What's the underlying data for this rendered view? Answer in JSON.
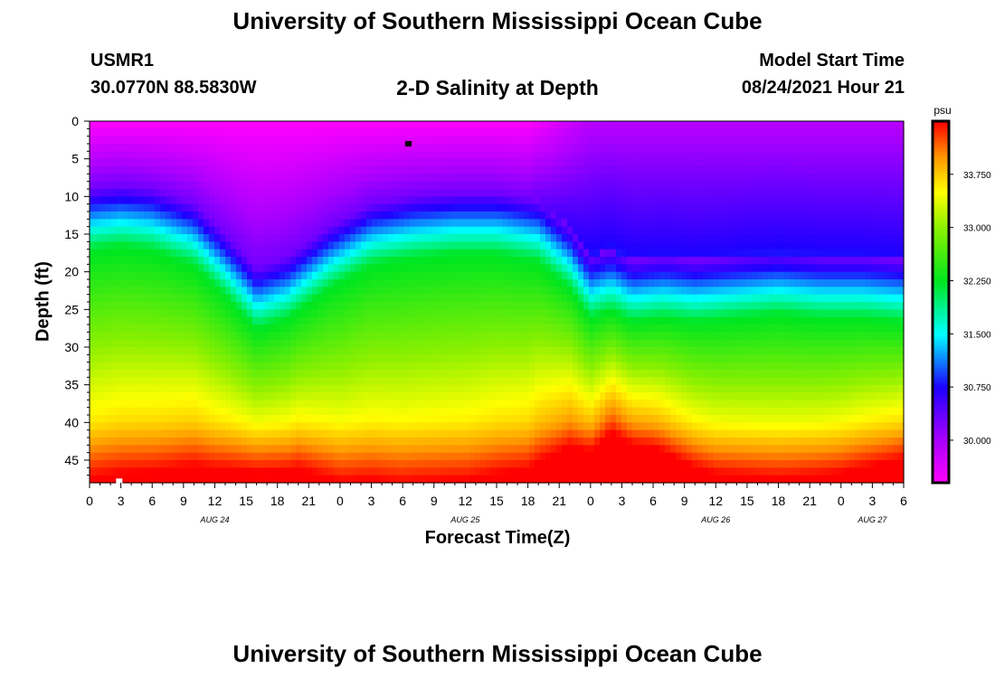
{
  "header": {
    "title_top": "University of Southern Mississippi Ocean Cube",
    "title_bottom": "University of Southern Mississippi Ocean Cube",
    "station": "USMR1",
    "coords": "30.0770N  88.5830W",
    "plot_title": "2-D Salinity at Depth",
    "model_start_label": "Model Start Time",
    "model_start_value": "08/24/2021 Hour 21"
  },
  "chart_data": {
    "type": "heatmap",
    "title": "2-D Salinity at Depth",
    "xlabel": "Forecast Time(Z)",
    "ylabel": "Depth (ft)",
    "x_range_hours": [
      0,
      78
    ],
    "y_range_ft": [
      0,
      48
    ],
    "x_ticks": [
      "0",
      "3",
      "6",
      "9",
      "12",
      "15",
      "18",
      "21",
      "0",
      "3",
      "6",
      "9",
      "12",
      "15",
      "18",
      "21",
      "0",
      "3",
      "6",
      "9",
      "12",
      "15",
      "18",
      "21",
      "0",
      "3",
      "6"
    ],
    "y_ticks": [
      "0",
      "5",
      "10",
      "15",
      "20",
      "25",
      "30",
      "35",
      "40",
      "45"
    ],
    "day_labels": [
      {
        "text": "AUG 24",
        "hour": 12
      },
      {
        "text": "AUG 25",
        "hour": 36
      },
      {
        "text": "AUG 26",
        "hour": 60
      },
      {
        "text": "AUG 27",
        "hour": 75
      }
    ],
    "colorbar": {
      "unit": "psu",
      "range": [
        29.4,
        34.5
      ],
      "ticks": [
        "30.000",
        "30.750",
        "31.500",
        "32.250",
        "33.000",
        "33.750"
      ],
      "tick_values": [
        30.0,
        30.75,
        31.5,
        32.25,
        33.0,
        33.75
      ]
    },
    "halocline_depth_ft": {
      "hours": [
        0,
        3,
        6,
        10,
        13,
        16,
        19,
        23,
        27,
        31,
        35,
        39,
        43,
        46,
        48,
        50,
        52,
        55,
        58,
        62,
        66,
        70,
        74,
        78
      ],
      "depth": [
        12,
        11.5,
        12,
        14,
        18,
        22.5,
        21,
        17,
        14,
        13,
        12.5,
        12.5,
        13.5,
        17,
        21,
        20,
        21.5,
        21,
        21.5,
        21,
        20.5,
        21,
        21,
        21.5
      ]
    },
    "bottom_gradient_ft": {
      "hours": [
        0,
        6,
        12,
        16,
        20,
        24,
        30,
        36,
        42,
        46,
        50,
        54,
        60,
        66,
        72,
        78
      ],
      "scale": [
        18,
        17,
        14,
        11,
        12,
        16,
        18,
        18,
        16,
        11,
        8,
        9,
        12,
        13,
        12,
        10
      ]
    },
    "markers": [
      {
        "hour": 30.5,
        "depth_ft": 3,
        "color": "#000000"
      },
      {
        "hour": 2.8,
        "depth_ft": 47.8,
        "color": "#ffffff"
      }
    ]
  }
}
